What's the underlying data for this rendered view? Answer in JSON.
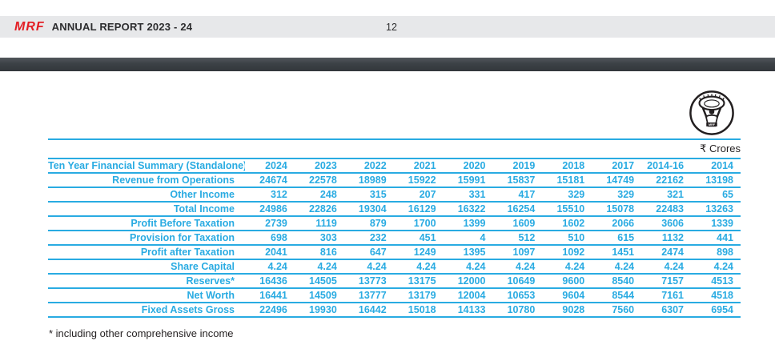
{
  "header": {
    "logo_text": "MRF",
    "title": "ANNUAL REPORT 2023 - 24",
    "page_number": "12"
  },
  "content": {
    "unit_label": "₹ Crores",
    "footnote": "* including other comprehensive income",
    "emblem_icon": "mrf-muscleman-emblem"
  },
  "colors": {
    "accent_cyan": "#29abe2",
    "logo_red": "#e31e24",
    "header_bar_gray": "#e7e8ea",
    "dark_bar": "#3c4146",
    "text_dark": "#231f20"
  },
  "table": {
    "header": [
      "Ten Year Financial Summary (Standalone)",
      "2024",
      "2023",
      "2022",
      "2021",
      "2020",
      "2019",
      "2018",
      "2017",
      "2014-16",
      "2014"
    ],
    "rows": [
      {
        "label": "Revenue from Operations",
        "values": [
          "24674",
          "22578",
          "18989",
          "15922",
          "15991",
          "15837",
          "15181",
          "14749",
          "22162",
          "13198"
        ]
      },
      {
        "label": "Other Income",
        "values": [
          "312",
          "248",
          "315",
          "207",
          "331",
          "417",
          "329",
          "329",
          "321",
          "65"
        ]
      },
      {
        "label": "Total Income",
        "values": [
          "24986",
          "22826",
          "19304",
          "16129",
          "16322",
          "16254",
          "15510",
          "15078",
          "22483",
          "13263"
        ]
      },
      {
        "label": "Profit Before Taxation",
        "values": [
          "2739",
          "1119",
          "879",
          "1700",
          "1399",
          "1609",
          "1602",
          "2066",
          "3606",
          "1339"
        ]
      },
      {
        "label": "Provision for Taxation",
        "values": [
          "698",
          "303",
          "232",
          "451",
          "4",
          "512",
          "510",
          "615",
          "1132",
          "441"
        ]
      },
      {
        "label": "Profit after Taxation",
        "values": [
          "2041",
          "816",
          "647",
          "1249",
          "1395",
          "1097",
          "1092",
          "1451",
          "2474",
          "898"
        ]
      },
      {
        "label": "Share Capital",
        "values": [
          "4.24",
          "4.24",
          "4.24",
          "4.24",
          "4.24",
          "4.24",
          "4.24",
          "4.24",
          "4.24",
          "4.24"
        ]
      },
      {
        "label": "Reserves*",
        "values": [
          "16436",
          "14505",
          "13773",
          "13175",
          "12000",
          "10649",
          "9600",
          "8540",
          "7157",
          "4513"
        ]
      },
      {
        "label": "Net Worth",
        "values": [
          "16441",
          "14509",
          "13777",
          "13179",
          "12004",
          "10653",
          "9604",
          "8544",
          "7161",
          "4518"
        ]
      },
      {
        "label": "Fixed Assets Gross",
        "values": [
          "22496",
          "19930",
          "16442",
          "15018",
          "14133",
          "10780",
          "9028",
          "7560",
          "6307",
          "6954"
        ]
      }
    ]
  }
}
